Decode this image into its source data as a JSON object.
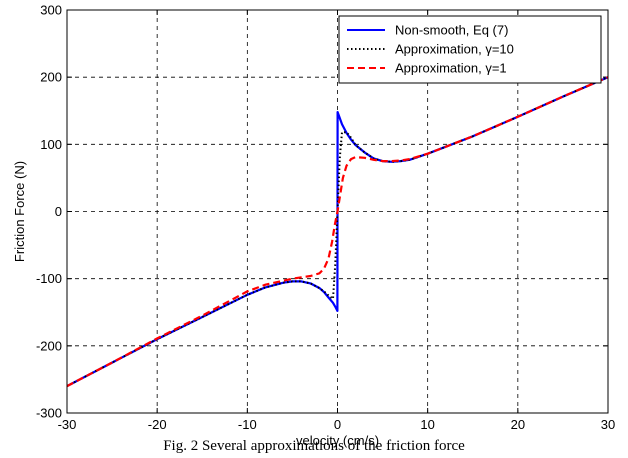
{
  "chart_data": {
    "type": "line",
    "xlabel": "velocity (cm/s)",
    "ylabel": "Friction Force (N)",
    "xlim": [
      -30,
      30
    ],
    "ylim": [
      -300,
      300
    ],
    "xticks": [
      "-30",
      "-20",
      "-10",
      "0",
      "10",
      "20",
      "30"
    ],
    "yticks": [
      "300",
      "200",
      "100",
      "0",
      "-100",
      "-200",
      "-300"
    ],
    "grid": true,
    "legend_position": "top-right",
    "series": [
      {
        "name": "Non-smooth, Eq (7)",
        "color": "#0000ff",
        "style": "solid",
        "x": [
          -30,
          -25,
          -20,
          -15,
          -10,
          -8,
          -6,
          -5,
          -4,
          -3,
          -2,
          -1.5,
          -1,
          -0.5,
          -0.2,
          -0.01,
          0.01,
          0.2,
          0.5,
          1,
          1.5,
          2,
          3,
          4,
          5,
          6,
          7,
          8,
          10,
          15,
          20,
          25,
          30
        ],
        "y": [
          -260,
          -225,
          -190,
          -157,
          -124,
          -113,
          -106,
          -104,
          -104,
          -107,
          -114,
          -120,
          -128,
          -136,
          -143,
          -148,
          148,
          141,
          130,
          117,
          107,
          99,
          88,
          79,
          75,
          74,
          75,
          77,
          86,
          112,
          141,
          171,
          200
        ]
      },
      {
        "name": "Approximation, γ=10",
        "color": "#000000",
        "style": "dotted",
        "x": [
          -30,
          -25,
          -20,
          -15,
          -10,
          -8,
          -6,
          -5,
          -4,
          -3,
          -2,
          -1.5,
          -1,
          -0.5,
          -0.25,
          0,
          0.25,
          0.5,
          1,
          1.5,
          2,
          3,
          4,
          5,
          6,
          7,
          8,
          10,
          15,
          20,
          25,
          30
        ],
        "y": [
          -260,
          -225,
          -190,
          -157,
          -124,
          -113,
          -106,
          -104,
          -104,
          -107,
          -114,
          -119,
          -125,
          -130,
          -80,
          0,
          80,
          118,
          118,
          110,
          99,
          88,
          79,
          75,
          74,
          75,
          77,
          86,
          112,
          141,
          171,
          200
        ]
      },
      {
        "name": "Approximation, γ=1",
        "color": "#ff0000",
        "style": "dashed",
        "x": [
          -30,
          -25,
          -20,
          -15,
          -10,
          -8,
          -6,
          -5,
          -4,
          -3,
          -2,
          -1.5,
          -1,
          -0.6,
          -0.3,
          0,
          0.3,
          0.6,
          1,
          1.5,
          2,
          3,
          4,
          5,
          6,
          7,
          8,
          10,
          15,
          20,
          25,
          30
        ],
        "y": [
          -260,
          -225,
          -189,
          -155,
          -119,
          -109,
          -103,
          -100,
          -98,
          -96,
          -92,
          -85,
          -70,
          -45,
          -20,
          0,
          25,
          50,
          68,
          78,
          81,
          80,
          77,
          75,
          75,
          76,
          78,
          86,
          112,
          141,
          171,
          200
        ]
      }
    ]
  },
  "caption": "Fig. 2 Several approximations of the friction force"
}
